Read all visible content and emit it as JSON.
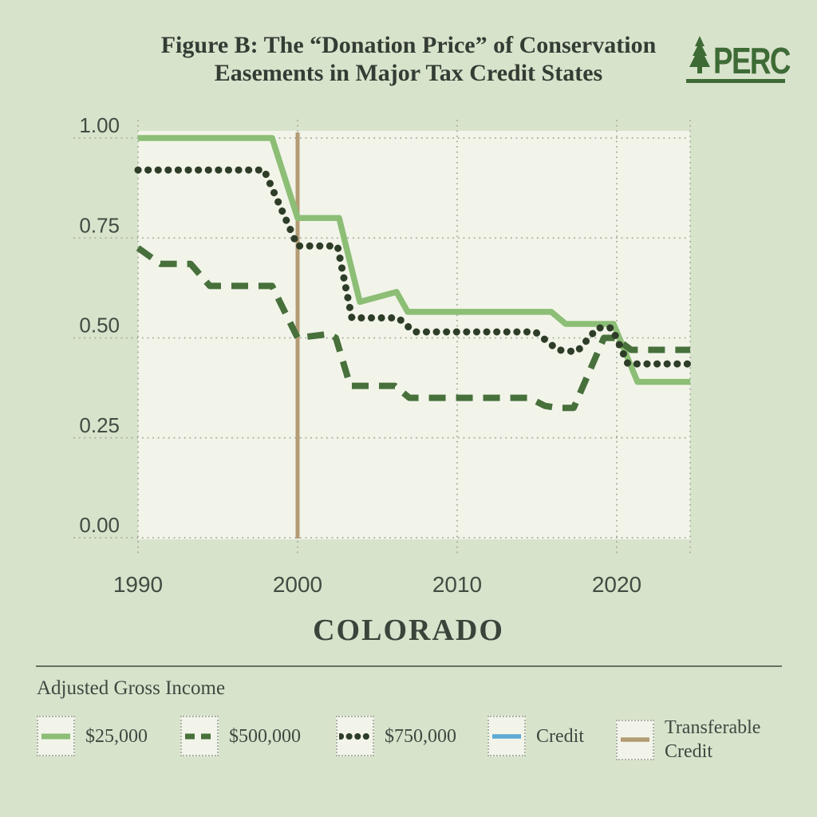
{
  "header": {
    "title_line1": "Figure B: The “Donation Price” of Conservation",
    "title_line2": "Easements in Major Tax Credit States",
    "logo_text": "PERC"
  },
  "chart_data": {
    "type": "line",
    "title": "COLORADO",
    "xlabel": "",
    "ylabel": "",
    "x_range": [
      1990,
      2024.6
    ],
    "y_range": [
      0,
      1
    ],
    "grid": "dotted",
    "legend_position": "bottom",
    "x_ticks": [
      {
        "value": 1990,
        "label": "1990"
      },
      {
        "value": 2000,
        "label": "2000"
      },
      {
        "value": 2010,
        "label": "2010"
      },
      {
        "value": 2020,
        "label": "2020"
      }
    ],
    "y_ticks": [
      {
        "value": 1.0,
        "label": "1.00"
      },
      {
        "value": 0.75,
        "label": "0.75"
      },
      {
        "value": 0.5,
        "label": "0.50"
      },
      {
        "value": 0.25,
        "label": "0.25"
      },
      {
        "value": 0.0,
        "label": "0.00"
      }
    ],
    "series": [
      {
        "name": "$25,000",
        "style": "solid",
        "color": "#8cbe76",
        "points": [
          [
            1990,
            1.0
          ],
          [
            1998.4,
            1.0
          ],
          [
            2000,
            0.8
          ],
          [
            2002.6,
            0.8
          ],
          [
            2003.9,
            0.59
          ],
          [
            2006.2,
            0.615
          ],
          [
            2006.9,
            0.565
          ],
          [
            2015.9,
            0.565
          ],
          [
            2016.8,
            0.535
          ],
          [
            2019.8,
            0.535
          ],
          [
            2021.3,
            0.39
          ],
          [
            2024.6,
            0.39
          ]
        ]
      },
      {
        "name": "$500,000",
        "style": "dashed",
        "color": "#47703b",
        "points": [
          [
            1990,
            0.725
          ],
          [
            1991.4,
            0.685
          ],
          [
            1993.3,
            0.685
          ],
          [
            1994.5,
            0.63
          ],
          [
            1998.4,
            0.63
          ],
          [
            2000,
            0.5
          ],
          [
            2002.0,
            0.51
          ],
          [
            2002.4,
            0.5
          ],
          [
            2003.3,
            0.38
          ],
          [
            2006.1,
            0.38
          ],
          [
            2007.0,
            0.35
          ],
          [
            2014.5,
            0.35
          ],
          [
            2015.5,
            0.33
          ],
          [
            2016.3,
            0.325
          ],
          [
            2017.3,
            0.325
          ],
          [
            2019.2,
            0.5
          ],
          [
            2019.9,
            0.5
          ],
          [
            2020.9,
            0.47
          ],
          [
            2024.6,
            0.47
          ]
        ]
      },
      {
        "name": "$750,000",
        "style": "dotted",
        "color": "#2e3d28",
        "points": [
          [
            1990,
            0.92
          ],
          [
            1997.9,
            0.92
          ],
          [
            2000,
            0.73
          ],
          [
            2002.5,
            0.73
          ],
          [
            2003.4,
            0.55
          ],
          [
            2006.3,
            0.55
          ],
          [
            2007.3,
            0.515
          ],
          [
            2014.9,
            0.515
          ],
          [
            2016.3,
            0.47
          ],
          [
            2017.5,
            0.465
          ],
          [
            2018.8,
            0.525
          ],
          [
            2019.7,
            0.525
          ],
          [
            2020.7,
            0.435
          ],
          [
            2024.6,
            0.435
          ]
        ]
      },
      {
        "name": "Credit",
        "style": "solid",
        "color": "#5ea9d4",
        "points": []
      }
    ],
    "vertical_line": {
      "name": "Transferable Credit",
      "x": 2000,
      "color": "#b39c74"
    }
  },
  "legend": {
    "heading": "Adjusted Gross Income",
    "items": [
      {
        "label": "$25,000",
        "swatch": "green-solid"
      },
      {
        "label": "$500,000",
        "swatch": "dark-dashed"
      },
      {
        "label": "$750,000",
        "swatch": "dark-dotted"
      },
      {
        "label": "Credit",
        "swatch": "blue-solid"
      },
      {
        "label": "Transferable Credit",
        "swatch": "tan-solid"
      }
    ]
  },
  "colors": {
    "page_bg": "#d8e3cc",
    "panel_bg": "#f2f4e9",
    "grid_dots": "#a7ae9e",
    "line_25k": "#8cbe76",
    "line_500k": "#47703b",
    "line_750k": "#2e3d28",
    "credit_blue": "#5ea9d4",
    "transferable_tan": "#b39c74",
    "title_text": "#333d34",
    "logo_green": "#3e6b35"
  }
}
